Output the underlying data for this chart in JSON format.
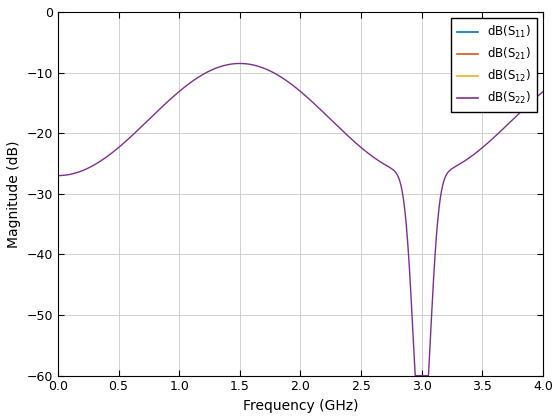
{
  "xlabel": "Frequency (GHz)",
  "ylabel": "Magnitude (dB)",
  "xlim": [
    0,
    4
  ],
  "ylim": [
    -60,
    0
  ],
  "xticks": [
    0,
    0.5,
    1.0,
    1.5,
    2.0,
    2.5,
    3.0,
    3.5,
    4.0
  ],
  "yticks": [
    0,
    -10,
    -20,
    -30,
    -40,
    -50,
    -60
  ],
  "line_colors": [
    "#0072BD",
    "#D95319",
    "#EDB120",
    "#7E2F8E"
  ],
  "background_color": "#ffffff",
  "fig_facecolor": "#ffffff",
  "grid_color": "#d0d0d0"
}
